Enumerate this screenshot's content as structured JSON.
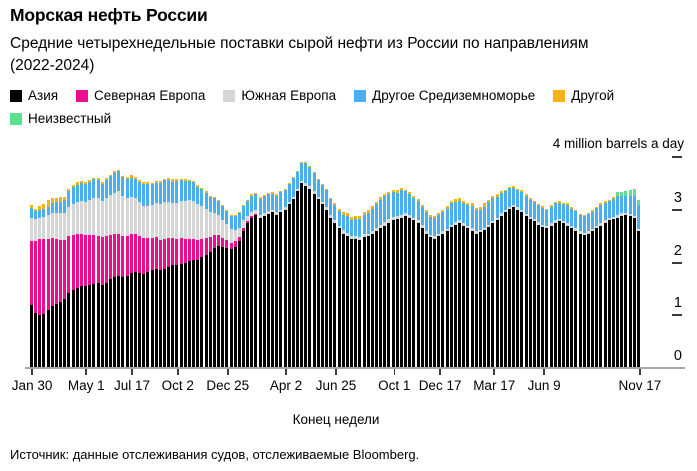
{
  "header": {
    "title": "Морская нефть России",
    "subtitle": "Средние четырехнедельные поставки сырой нефти из России по направлениям (2022-2024)"
  },
  "source": "Источник: данные отслеживания судов, отслеживаемые Bloomberg.",
  "chart_data": {
    "type": "bar",
    "stacked": true,
    "title": "Морская нефть России",
    "subtitle": "Средние четырехнедельные поставки сырой нефти из России по направлениям (2022-2024)",
    "unit_label": "4 million barrels a day",
    "xlabel": "Конец недели",
    "ylabel": "million barrels a day",
    "ylim": [
      0,
      4
    ],
    "y_ticks": [
      4,
      3,
      2,
      1,
      0
    ],
    "y_dash_values": [
      4,
      3,
      2,
      1
    ],
    "y_number_values": [
      3,
      2,
      1,
      0
    ],
    "grid": false,
    "legend_position": "top",
    "x_count": 147,
    "x_tick_labels": [
      {
        "index": 0,
        "label": "Jan 30"
      },
      {
        "index": 13,
        "label": "May 1"
      },
      {
        "index": 24,
        "label": "Jul 17"
      },
      {
        "index": 35,
        "label": "Oct 2"
      },
      {
        "index": 47,
        "label": "Dec 25"
      },
      {
        "index": 61,
        "label": "Apr 2"
      },
      {
        "index": 73,
        "label": "Jun 25"
      },
      {
        "index": 87,
        "label": "Oct 1"
      },
      {
        "index": 98,
        "label": "Dec 17"
      },
      {
        "index": 111,
        "label": "Mar 17"
      },
      {
        "index": 123,
        "label": "Jun 9"
      },
      {
        "index": 146,
        "label": "Nov 17"
      }
    ],
    "series": [
      {
        "id": "asia",
        "name": "Азия",
        "color": "#000000",
        "values": [
          1.2,
          1.05,
          1.0,
          1.02,
          1.1,
          1.18,
          1.22,
          1.25,
          1.3,
          1.42,
          1.48,
          1.52,
          1.55,
          1.55,
          1.58,
          1.6,
          1.62,
          1.58,
          1.62,
          1.68,
          1.72,
          1.75,
          1.72,
          1.75,
          1.8,
          1.82,
          1.8,
          1.78,
          1.82,
          1.85,
          1.88,
          1.85,
          1.88,
          1.92,
          1.95,
          1.95,
          1.98,
          2.0,
          2.02,
          2.05,
          2.05,
          2.1,
          2.15,
          2.2,
          2.28,
          2.32,
          2.3,
          2.28,
          2.25,
          2.3,
          2.4,
          2.6,
          2.75,
          2.85,
          2.9,
          2.85,
          2.88,
          2.92,
          2.95,
          2.9,
          2.95,
          3.0,
          3.1,
          3.2,
          3.35,
          3.5,
          3.45,
          3.4,
          3.3,
          3.2,
          3.1,
          3.0,
          2.85,
          2.75,
          2.65,
          2.55,
          2.5,
          2.45,
          2.45,
          2.42,
          2.48,
          2.5,
          2.55,
          2.6,
          2.65,
          2.7,
          2.75,
          2.8,
          2.82,
          2.85,
          2.88,
          2.85,
          2.8,
          2.75,
          2.65,
          2.55,
          2.48,
          2.45,
          2.5,
          2.55,
          2.6,
          2.68,
          2.72,
          2.75,
          2.7,
          2.65,
          2.6,
          2.55,
          2.58,
          2.62,
          2.68,
          2.75,
          2.8,
          2.88,
          2.95,
          3.02,
          3.05,
          3.0,
          2.95,
          2.88,
          2.82,
          2.78,
          2.72,
          2.68,
          2.65,
          2.7,
          2.75,
          2.78,
          2.75,
          2.7,
          2.65,
          2.6,
          2.55,
          2.52,
          2.55,
          2.6,
          2.65,
          2.7,
          2.75,
          2.8,
          2.82,
          2.85,
          2.88,
          2.9,
          2.88,
          2.85,
          2.6
        ]
      },
      {
        "id": "north-europe",
        "name": "Северная Европа",
        "color": "#ec0e8f",
        "values": [
          1.2,
          1.35,
          1.45,
          1.42,
          1.35,
          1.28,
          1.22,
          1.18,
          1.12,
          1.08,
          1.05,
          1.02,
          1.0,
          0.98,
          0.95,
          0.92,
          0.88,
          0.9,
          0.88,
          0.85,
          0.82,
          0.8,
          0.78,
          0.76,
          0.75,
          0.72,
          0.7,
          0.68,
          0.65,
          0.62,
          0.6,
          0.58,
          0.56,
          0.54,
          0.52,
          0.5,
          0.48,
          0.45,
          0.42,
          0.4,
          0.38,
          0.35,
          0.32,
          0.28,
          0.24,
          0.2,
          0.17,
          0.15,
          0.12,
          0.1,
          0.08,
          0.06,
          0.04,
          0.03,
          0.02,
          0,
          0,
          0,
          0,
          0,
          0,
          0,
          0,
          0,
          0,
          0,
          0,
          0,
          0,
          0,
          0,
          0,
          0,
          0,
          0,
          0,
          0,
          0,
          0,
          0,
          0,
          0,
          0,
          0,
          0,
          0,
          0,
          0,
          0,
          0,
          0,
          0,
          0,
          0,
          0,
          0,
          0,
          0,
          0,
          0,
          0,
          0,
          0,
          0,
          0,
          0,
          0,
          0,
          0,
          0,
          0,
          0,
          0,
          0,
          0,
          0,
          0,
          0,
          0,
          0,
          0,
          0,
          0,
          0,
          0,
          0,
          0,
          0,
          0,
          0,
          0,
          0,
          0,
          0,
          0,
          0,
          0,
          0,
          0,
          0,
          0,
          0,
          0,
          0,
          0,
          0,
          0
        ]
      },
      {
        "id": "south-europe",
        "name": "Южная Европа",
        "color": "#d6d6d6",
        "values": [
          0.45,
          0.42,
          0.4,
          0.42,
          0.45,
          0.48,
          0.5,
          0.5,
          0.52,
          0.55,
          0.58,
          0.6,
          0.62,
          0.62,
          0.65,
          0.7,
          0.72,
          0.68,
          0.72,
          0.75,
          0.78,
          0.8,
          0.76,
          0.72,
          0.7,
          0.68,
          0.65,
          0.62,
          0.6,
          0.62,
          0.65,
          0.68,
          0.7,
          0.68,
          0.66,
          0.68,
          0.7,
          0.72,
          0.74,
          0.72,
          0.68,
          0.62,
          0.55,
          0.48,
          0.42,
          0.38,
          0.34,
          0.3,
          0.26,
          0.22,
          0.18,
          0.14,
          0.1,
          0.08,
          0.07,
          0.06,
          0.06,
          0.05,
          0.05,
          0.05,
          0.05,
          0.05,
          0.05,
          0.05,
          0.04,
          0.04,
          0.05,
          0.05,
          0.05,
          0.04,
          0.04,
          0.05,
          0.05,
          0.05,
          0.05,
          0.06,
          0.06,
          0.05,
          0.05,
          0.06,
          0.06,
          0.05,
          0.05,
          0.06,
          0.06,
          0.06,
          0.07,
          0.07,
          0.06,
          0.06,
          0.05,
          0.05,
          0.05,
          0.06,
          0.06,
          0.05,
          0.05,
          0.05,
          0.05,
          0.05,
          0.04,
          0.04,
          0.05,
          0.05,
          0.04,
          0.04,
          0.05,
          0.05,
          0.04,
          0.04,
          0.04,
          0.04,
          0.05,
          0.05,
          0.04,
          0.04,
          0.04,
          0.05,
          0.05,
          0.04,
          0.04,
          0.04,
          0.04,
          0.04,
          0.04,
          0.04,
          0.05,
          0.05,
          0.04,
          0.04,
          0.04,
          0.05,
          0.05,
          0.04,
          0.04,
          0.04,
          0.04,
          0.05,
          0.05,
          0.04,
          0.04,
          0.05,
          0.05,
          0.04,
          0.04,
          0.04,
          0.04
        ]
      },
      {
        "id": "other-mediterranean",
        "name": "Другое Средиземноморье",
        "color": "#4aaff0",
        "values": [
          0.18,
          0.15,
          0.14,
          0.15,
          0.16,
          0.18,
          0.2,
          0.22,
          0.25,
          0.3,
          0.32,
          0.33,
          0.34,
          0.34,
          0.35,
          0.36,
          0.35,
          0.33,
          0.35,
          0.36,
          0.38,
          0.38,
          0.36,
          0.35,
          0.36,
          0.36,
          0.38,
          0.4,
          0.42,
          0.4,
          0.38,
          0.4,
          0.42,
          0.42,
          0.4,
          0.42,
          0.4,
          0.38,
          0.36,
          0.35,
          0.33,
          0.32,
          0.3,
          0.28,
          0.28,
          0.26,
          0.26,
          0.25,
          0.25,
          0.26,
          0.27,
          0.28,
          0.28,
          0.3,
          0.3,
          0.3,
          0.32,
          0.32,
          0.3,
          0.32,
          0.33,
          0.32,
          0.33,
          0.35,
          0.32,
          0.35,
          0.38,
          0.36,
          0.34,
          0.32,
          0.33,
          0.32,
          0.3,
          0.3,
          0.28,
          0.3,
          0.32,
          0.3,
          0.32,
          0.35,
          0.36,
          0.38,
          0.42,
          0.45,
          0.48,
          0.5,
          0.48,
          0.46,
          0.44,
          0.46,
          0.42,
          0.4,
          0.38,
          0.36,
          0.35,
          0.36,
          0.34,
          0.35,
          0.35,
          0.36,
          0.38,
          0.4,
          0.38,
          0.36,
          0.38,
          0.4,
          0.42,
          0.4,
          0.38,
          0.4,
          0.42,
          0.44,
          0.4,
          0.38,
          0.36,
          0.35,
          0.33,
          0.32,
          0.34,
          0.35,
          0.33,
          0.32,
          0.33,
          0.32,
          0.3,
          0.32,
          0.33,
          0.3,
          0.32,
          0.35,
          0.33,
          0.32,
          0.3,
          0.32,
          0.33,
          0.32,
          0.34,
          0.35,
          0.33,
          0.32,
          0.35,
          0.36,
          0.33,
          0.32,
          0.35,
          0.38,
          0.45
        ]
      },
      {
        "id": "other",
        "name": "Другой",
        "color": "#f2b31c",
        "values": [
          0.06,
          0.05,
          0.08,
          0.1,
          0.12,
          0.1,
          0.08,
          0.1,
          0.06,
          0.05,
          0.04,
          0.05,
          0.04,
          0.04,
          0.03,
          0.02,
          0.03,
          0.04,
          0.03,
          0.02,
          0.03,
          0.02,
          0.03,
          0.04,
          0.05,
          0.04,
          0.03,
          0.04,
          0.03,
          0.02,
          0.03,
          0.04,
          0.03,
          0.04,
          0.05,
          0.04,
          0.03,
          0.04,
          0.03,
          0.02,
          0.03,
          0.02,
          0.03,
          0.02,
          0.02,
          0.03,
          0.02,
          0.02,
          0.02,
          0.02,
          0.03,
          0.02,
          0.02,
          0.03,
          0.02,
          0.03,
          0.02,
          0.02,
          0.03,
          0.02,
          0.03,
          0.02,
          0.02,
          0.02,
          0.03,
          0.02,
          0.02,
          0.02,
          0.03,
          0.02,
          0.02,
          0.03,
          0.02,
          0.02,
          0.03,
          0.04,
          0.05,
          0.06,
          0.07,
          0.06,
          0.05,
          0.06,
          0.05,
          0.04,
          0.05,
          0.04,
          0.04,
          0.04,
          0.05,
          0.04,
          0.03,
          0.04,
          0.03,
          0.04,
          0.03,
          0.04,
          0.03,
          0.04,
          0.03,
          0.04,
          0.05,
          0.04,
          0.05,
          0.06,
          0.05,
          0.04,
          0.05,
          0.04,
          0.05,
          0.06,
          0.05,
          0.04,
          0.05,
          0.04,
          0.03,
          0.02,
          0.03,
          0.02,
          0.03,
          0.02,
          0.03,
          0.02,
          0.02,
          0.03,
          0.02,
          0.03,
          0.02,
          0.03,
          0.02,
          0.03,
          0.04,
          0.03,
          0.02,
          0.03,
          0.02,
          0.03,
          0.02,
          0.03,
          0.03,
          0.02,
          0.03,
          0.02,
          0,
          0,
          0,
          0,
          0
        ]
      },
      {
        "id": "unknown",
        "name": "Неизвестный",
        "color": "#5ce08e",
        "values": [
          0,
          0,
          0,
          0,
          0,
          0,
          0,
          0,
          0,
          0,
          0,
          0,
          0,
          0,
          0,
          0,
          0,
          0,
          0,
          0,
          0,
          0,
          0,
          0,
          0,
          0,
          0,
          0,
          0,
          0,
          0,
          0,
          0,
          0,
          0,
          0,
          0,
          0,
          0,
          0,
          0,
          0,
          0,
          0,
          0,
          0,
          0,
          0,
          0,
          0,
          0,
          0,
          0,
          0,
          0,
          0,
          0,
          0,
          0,
          0,
          0,
          0,
          0,
          0,
          0,
          0,
          0,
          0,
          0,
          0,
          0,
          0,
          0,
          0,
          0,
          0,
          0,
          0,
          0,
          0,
          0,
          0,
          0,
          0,
          0,
          0,
          0,
          0,
          0,
          0,
          0,
          0,
          0,
          0,
          0,
          0,
          0,
          0,
          0,
          0,
          0,
          0,
          0,
          0,
          0,
          0,
          0,
          0,
          0,
          0,
          0,
          0,
          0,
          0,
          0,
          0,
          0,
          0,
          0,
          0,
          0,
          0,
          0,
          0,
          0,
          0,
          0,
          0,
          0,
          0,
          0,
          0,
          0,
          0,
          0,
          0,
          0,
          0,
          0,
          0,
          0,
          0.05,
          0.08,
          0.1,
          0.1,
          0.12,
          0.1
        ]
      }
    ]
  }
}
